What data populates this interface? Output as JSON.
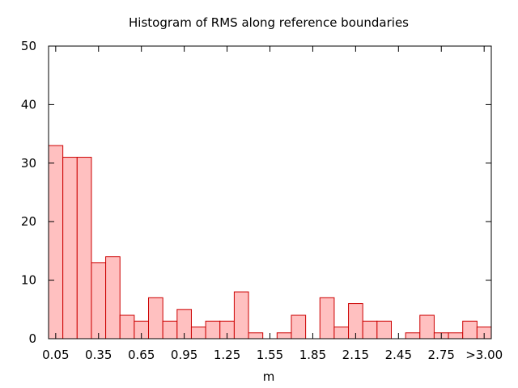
{
  "chart_data": {
    "type": "bar",
    "title": "Histogram of RMS along reference boundaries",
    "xlabel": "m",
    "ylabel": "",
    "ylim": [
      0,
      50
    ],
    "yticks": [
      "0",
      "10",
      "20",
      "30",
      "40",
      "50"
    ],
    "xticks": [
      "0.05",
      "0.35",
      "0.65",
      "0.95",
      "1.25",
      "1.55",
      "1.85",
      "2.15",
      "2.45",
      "2.75",
      ">3.00"
    ],
    "grid": false,
    "series_color": "#ffc0c0",
    "edge_color": "#cc0000",
    "values": [
      33,
      31,
      31,
      13,
      14,
      4,
      3,
      7,
      3,
      5,
      2,
      3,
      3,
      8,
      1,
      0,
      1,
      4,
      0,
      7,
      2,
      6,
      3,
      3,
      0,
      1,
      4,
      1,
      1,
      3,
      2
    ]
  }
}
